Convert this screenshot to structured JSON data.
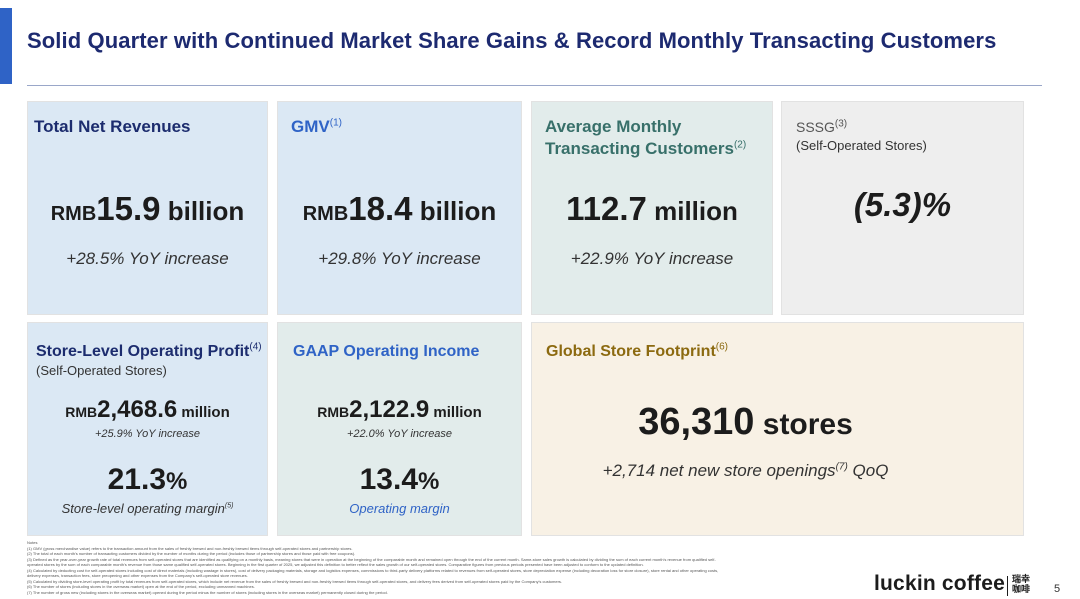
{
  "title": "Solid Quarter with Continued Market Share Gains & Record Monthly Transacting Customers",
  "colors": {
    "accent": "#2f63c6",
    "title": "#1d2a70",
    "card_blue": "#dbe8f4",
    "card_green": "#e2eceb",
    "card_gray": "#eeeeee",
    "card_cream": "#f8f1e5"
  },
  "cards": {
    "revenue": {
      "title": "Total Net Revenues",
      "prefix": "RMB",
      "value": "15.9",
      "unit": " billion",
      "caption": "+28.5% YoY increase"
    },
    "gmv": {
      "title": "GMV",
      "sup": "(1)",
      "prefix": "RMB",
      "value": "18.4",
      "unit": " billion",
      "caption": "+29.8% YoY increase"
    },
    "mtc": {
      "title_line1": "Average Monthly",
      "title_line2": "Transacting Customers",
      "sup": "(2)",
      "value": "112.7",
      "unit": " million",
      "caption": "+22.9% YoY increase"
    },
    "sssg": {
      "title": "SSSG",
      "sup": "(3)",
      "subtitle": "(Self-Operated Stores)",
      "value": "(5.3)%"
    },
    "store_profit": {
      "title": "Store-Level Operating Profit",
      "sup": "(4)",
      "subtitle": "(Self-Operated Stores)",
      "prefix": "RMB",
      "value": "2,468.6",
      "unit": " million",
      "growth": "+25.9% YoY increase",
      "margin": "21.3",
      "margin_unit": "%",
      "margin_caption": "Store-level operating margin",
      "margin_sup": "(5)"
    },
    "gaap": {
      "title": "GAAP Operating Income",
      "prefix": "RMB",
      "value": "2,122.9",
      "unit": " million",
      "growth": "+22.0% YoY increase",
      "margin": "13.4",
      "margin_unit": "%",
      "margin_caption": "Operating margin"
    },
    "footprint": {
      "title": "Global Store Footprint",
      "sup": "(6)",
      "value": "36,310",
      "unit": " stores",
      "caption_pre": "+2,714 net new store openings",
      "caption_sup": "(7)",
      "caption_post": " QoQ"
    }
  },
  "notes": [
    "Notes",
    "(1)    GMV (gross merchandise value) refers to the transaction amount from the sales of freshly brewed and non-freshly brewed items through self-operated stores and partnership stores.",
    "(2)    The total of each month's number of transacting customers divided by the number of months during the period (includes those of partnership stores and those paid with free coupons).",
    "(3)    Defined as the year-over-year growth rate of total revenues from self-operated stores that are identified as qualifying on a monthly basis, meaning stores that were in operation at the beginning of the comparable month and remained open through the end of the current month. Same-store sales growth is calculated by dividing the sum of each current month's revenue from qualified self-",
    "        operated stores by the sum of each comparable month's revenue from those same qualified self-operated stores. Beginning in the first quarter of 2025, we adjusted this definition to better reflect the sales growth of our self-operated stores. Comparative figures from previous periods presented have been adjusted to conform to the updated definition.",
    "(4)    Calculated by deducting cost for self-operated stores including cost of direct materials (including wastage in stores), cost of delivery packaging materials, storage and logistics expenses, commissions to third-party delivery platforms related to revenues from self-operated stores, store depreciation expense (including decoration loss for store closure), store rental and other operating costs,",
    "        delivery expenses, transaction fees, store preopening and other expenses from the Company's self-operated store revenues.",
    "(5)    Calculated by dividing store-level operating profit by total revenues from self-operated stores, which include net revenue from the sales of freshly brewed and non-freshly brewed items through self-operated stores, and delivery fees derived from self-operated stores paid by the Company's customers.",
    "(6)    The number of stores (including stores in the overseas market) open at the end of the period, excluding unmanned machines.",
    "(7)    The number of gross new (including stores in the overseas market) opened during the period minus the number of stores (including stores in the overseas market) permanently closed during the period."
  ],
  "logo": {
    "text": "luckin coffee",
    "cn_line1": "瑞幸",
    "cn_line2": "咖啡"
  },
  "page_number": "5"
}
